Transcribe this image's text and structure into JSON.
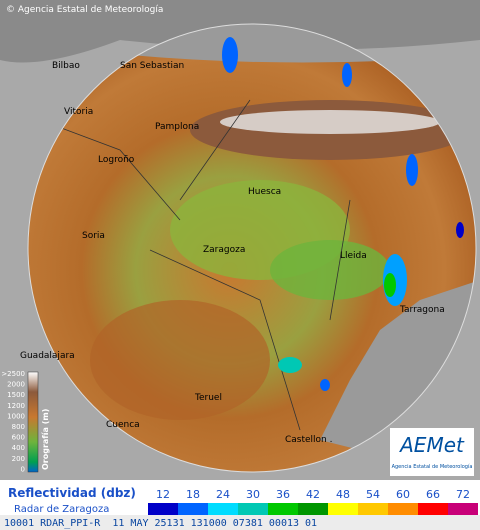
{
  "header": {
    "credit": "© Agencia Estatal de Meteorología"
  },
  "cities": [
    "Bilbao",
    "San Sebastian",
    "Vitoria",
    "Pamplona",
    "Logroño",
    "Huesca",
    "Soria",
    "Zaragoza",
    "Lleida",
    "Tarragona",
    "Guadalajara",
    "Teruel",
    "Cuenca",
    "Castellon ."
  ],
  "orography": {
    "title": "Orografía (m)",
    "ticks": [
      ">2500",
      "2000",
      "1500",
      "1200",
      "1000",
      "800",
      "600",
      "400",
      "200",
      "0"
    ]
  },
  "logo": {
    "name": "AEMet",
    "subtitle": "Agencia Estatal de Meteorología"
  },
  "legend": {
    "title": "Reflectividad (dbz)",
    "subtitle": "Radar de Zaragoza",
    "ticks": [
      12,
      18,
      24,
      30,
      36,
      42,
      48,
      54,
      60,
      66,
      72
    ],
    "colors": [
      "#0000c8",
      "#0064ff",
      "#00dcff",
      "#00c8b4",
      "#00c800",
      "#009600",
      "#ffff00",
      "#ffc800",
      "#ff8c00",
      "#ff0000",
      "#c80078"
    ]
  },
  "footer": "10001 RDAR_PPI-R  11 MAY 25131 131000 07381 00013 01"
}
